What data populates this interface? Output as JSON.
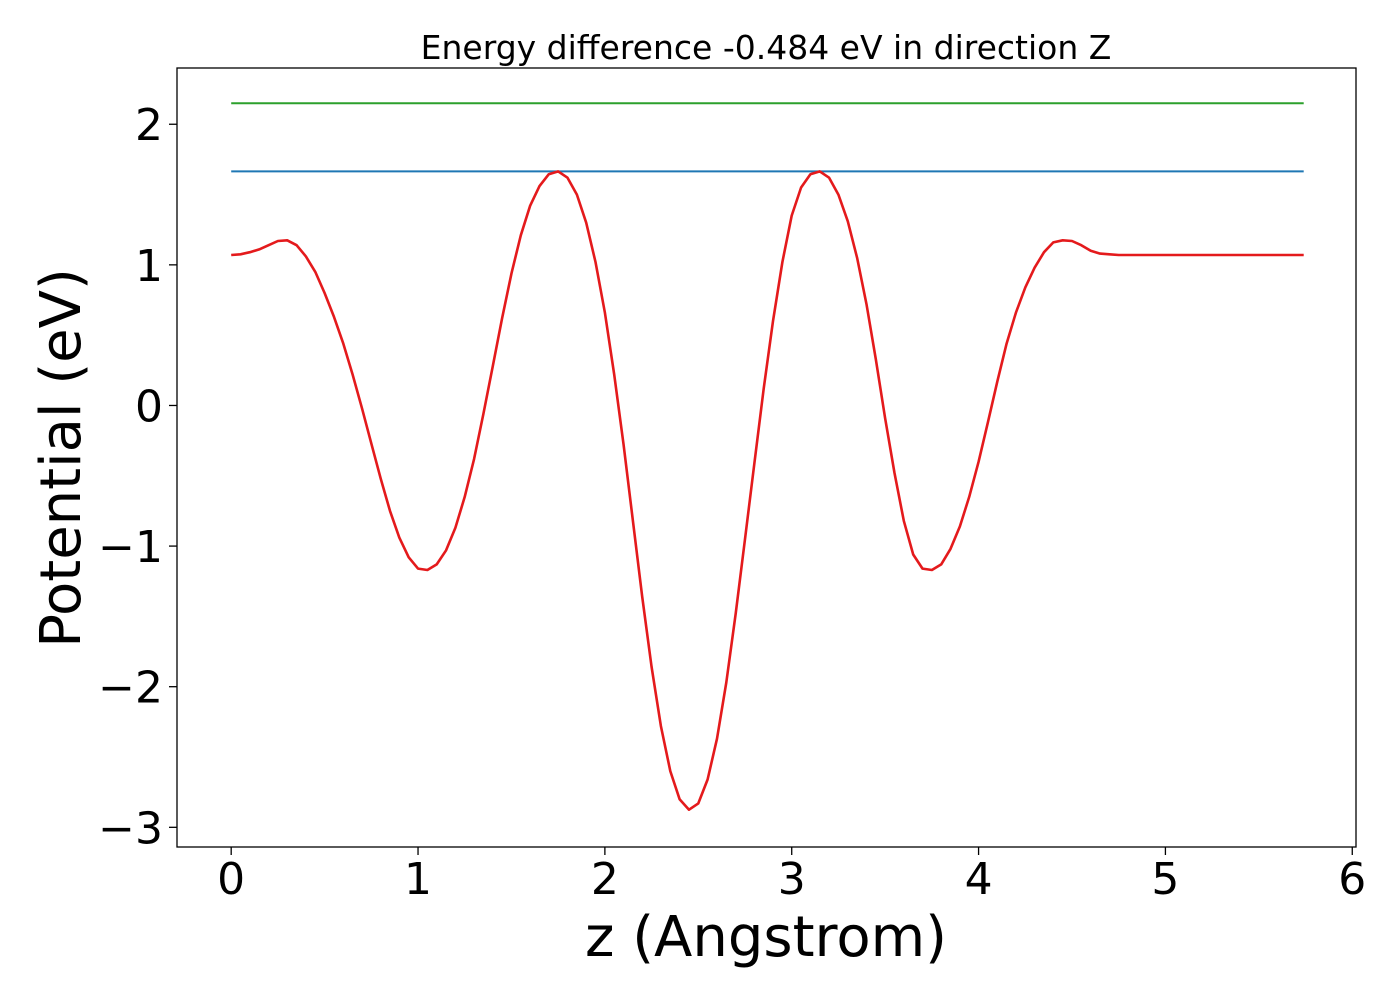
{
  "chart_data": {
    "type": "line",
    "title": "Energy difference -0.484 eV in direction Z",
    "xlabel": "z (Angstrom)",
    "ylabel": "Potential (eV)",
    "xlim": [
      -0.29,
      6.02
    ],
    "ylim": [
      -3.14,
      2.4
    ],
    "xticks": [
      0,
      1,
      2,
      3,
      4,
      5,
      6
    ],
    "xtick_labels": [
      "0",
      "1",
      "2",
      "3",
      "4",
      "5",
      "6"
    ],
    "yticks": [
      -3,
      -2,
      -1,
      0,
      1,
      2
    ],
    "ytick_labels": [
      "−3",
      "−2",
      "−1",
      "0",
      "1",
      "2"
    ],
    "grid": false,
    "series": [
      {
        "color": "#2ca02c",
        "x": [
          0,
          5.74
        ],
        "y": [
          2.15,
          2.15
        ]
      },
      {
        "color": "#1f77b4",
        "x": [
          0,
          5.74
        ],
        "y": [
          1.665,
          1.665
        ]
      },
      {
        "color": "#e41a1c",
        "x": [
          0,
          0.05,
          0.1,
          0.15,
          0.2,
          0.25,
          0.3,
          0.35,
          0.4,
          0.45,
          0.5,
          0.55,
          0.6,
          0.65,
          0.7,
          0.75,
          0.8,
          0.85,
          0.9,
          0.95,
          1.0,
          1.05,
          1.1,
          1.15,
          1.2,
          1.25,
          1.3,
          1.35,
          1.4,
          1.45,
          1.5,
          1.55,
          1.6,
          1.65,
          1.7,
          1.75,
          1.8,
          1.85,
          1.9,
          1.95,
          2.0,
          2.05,
          2.1,
          2.15,
          2.2,
          2.25,
          2.3,
          2.35,
          2.4,
          2.45,
          2.5,
          2.55,
          2.6,
          2.65,
          2.7,
          2.75,
          2.8,
          2.85,
          2.9,
          2.95,
          3.0,
          3.05,
          3.1,
          3.15,
          3.2,
          3.25,
          3.3,
          3.35,
          3.4,
          3.45,
          3.5,
          3.55,
          3.6,
          3.65,
          3.7,
          3.75,
          3.8,
          3.85,
          3.9,
          3.95,
          4.0,
          4.05,
          4.1,
          4.15,
          4.2,
          4.25,
          4.3,
          4.35,
          4.4,
          4.45,
          4.5,
          4.55,
          4.6,
          4.65,
          4.7,
          4.75,
          4.8,
          4.85,
          4.9,
          4.95,
          5.0,
          5.05,
          5.1,
          5.15,
          5.2,
          5.25,
          5.3,
          5.35,
          5.4,
          5.45,
          5.5,
          5.55,
          5.6,
          5.65,
          5.7,
          5.74
        ],
        "y": [
          1.07,
          1.075,
          1.09,
          1.11,
          1.14,
          1.17,
          1.175,
          1.14,
          1.06,
          0.95,
          0.8,
          0.63,
          0.44,
          0.22,
          -0.02,
          -0.27,
          -0.52,
          -0.75,
          -0.94,
          -1.08,
          -1.16,
          -1.17,
          -1.13,
          -1.03,
          -0.87,
          -0.65,
          -0.38,
          -0.06,
          0.28,
          0.62,
          0.94,
          1.21,
          1.42,
          1.56,
          1.645,
          1.665,
          1.62,
          1.5,
          1.3,
          1.02,
          0.66,
          0.22,
          -0.28,
          -0.82,
          -1.36,
          -1.86,
          -2.28,
          -2.6,
          -2.8,
          -2.875,
          -2.83,
          -2.66,
          -2.37,
          -1.97,
          -1.48,
          -0.95,
          -0.41,
          0.12,
          0.6,
          1.02,
          1.35,
          1.55,
          1.645,
          1.665,
          1.62,
          1.5,
          1.31,
          1.05,
          0.72,
          0.33,
          -0.09,
          -0.48,
          -0.82,
          -1.06,
          -1.16,
          -1.17,
          -1.13,
          -1.02,
          -0.86,
          -0.65,
          -0.4,
          -0.12,
          0.17,
          0.44,
          0.66,
          0.84,
          0.98,
          1.09,
          1.16,
          1.175,
          1.17,
          1.14,
          1.1,
          1.08,
          1.075,
          1.07,
          1.07,
          1.07,
          1.07,
          1.07,
          1.07,
          1.07,
          1.07,
          1.07,
          1.07,
          1.07,
          1.07,
          1.07,
          1.07,
          1.07,
          1.07,
          1.07,
          1.07,
          1.07,
          1.07,
          1.07
        ]
      }
    ]
  }
}
